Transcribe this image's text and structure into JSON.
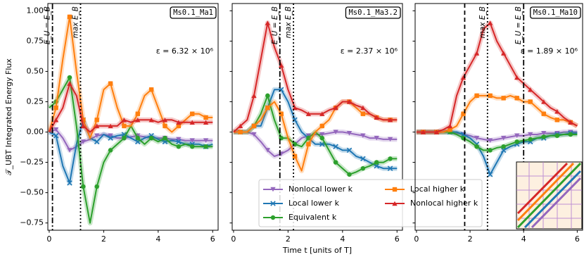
{
  "chart_data": [
    {
      "type": "line",
      "title": "Ms0.1_Ma1",
      "annotation": "ε = 6.32 × 10⁶",
      "y_label": "𝒯_UBT Integrated Energy Flux",
      "xlim": [
        -0.05,
        6.2
      ],
      "xticks": [
        0,
        2,
        4,
        6
      ],
      "ylim": [
        -0.81,
        1.06
      ],
      "yticks": [
        {
          "value": -0.75,
          "label": "−0.75"
        },
        {
          "value": -0.5,
          "label": "−0.50"
        },
        {
          "value": -0.25,
          "label": "−0.25"
        },
        {
          "value": 0,
          "label": "0.00"
        },
        {
          "value": 0.25,
          "label": "0.25"
        },
        {
          "value": 0.5,
          "label": "0.50"
        },
        {
          "value": 0.75,
          "label": "0.75"
        },
        {
          "value": 1,
          "label": "1.00"
        }
      ],
      "vlines": [
        {
          "x": 0.12,
          "style": "dashdot",
          "label": "E_U = E_B"
        },
        {
          "x": 1.15,
          "style": "dotted",
          "label": "max E_B"
        }
      ],
      "x": [
        0,
        0.25,
        0.5,
        0.75,
        1,
        1.25,
        1.5,
        1.75,
        2,
        2.25,
        2.5,
        2.75,
        3,
        3.25,
        3.5,
        3.75,
        4,
        4.25,
        4.5,
        4.75,
        5,
        5.25,
        5.5,
        5.75,
        6
      ],
      "series": [
        {
          "color": "#9467bd",
          "marker": "v",
          "values": [
            0,
            0.02,
            -0.05,
            -0.15,
            -0.12,
            -0.08,
            -0.06,
            -0.03,
            -0.02,
            -0.03,
            -0.05,
            -0.05,
            -0.04,
            -0.03,
            -0.04,
            -0.05,
            -0.05,
            -0.05,
            -0.06,
            -0.06,
            -0.07,
            -0.07,
            -0.07,
            -0.07,
            -0.07
          ]
        },
        {
          "color": "#1f77b4",
          "marker": "x",
          "values": [
            0,
            -0.03,
            -0.28,
            -0.42,
            -0.1,
            0.1,
            -0.05,
            -0.08,
            -0.02,
            -0.05,
            -0.03,
            -0.02,
            -0.05,
            -0.08,
            -0.05,
            -0.03,
            -0.06,
            -0.08,
            -0.07,
            -0.08,
            -0.1,
            -0.1,
            -0.1,
            -0.12,
            -0.1
          ]
        },
        {
          "color": "#2ca02c",
          "marker": "o",
          "values": [
            0.2,
            0.25,
            0.35,
            0.45,
            0.05,
            -0.45,
            -0.75,
            -0.45,
            -0.25,
            -0.15,
            -0.1,
            -0.05,
            0.05,
            -0.05,
            -0.1,
            -0.05,
            -0.08,
            -0.05,
            -0.1,
            -0.12,
            -0.1,
            -0.12,
            -0.12,
            -0.12,
            -0.12
          ]
        },
        {
          "color": "#ff7f0e",
          "marker": "s",
          "values": [
            0,
            0.2,
            0.6,
            0.95,
            0.5,
            0.1,
            -0.05,
            0.1,
            0.35,
            0.4,
            0.2,
            0.05,
            0.05,
            0.15,
            0.3,
            0.35,
            0.2,
            0.05,
            0,
            0.05,
            0.1,
            0.15,
            0.15,
            0.12,
            0.12
          ]
        },
        {
          "color": "#d62728",
          "marker": "^",
          "values": [
            0,
            0.1,
            0.2,
            0.4,
            0.3,
            0.05,
            0,
            0.05,
            0.05,
            0.05,
            0.05,
            0.1,
            0.08,
            0.1,
            0.1,
            0.1,
            0.08,
            0.1,
            0.1,
            0.08,
            0.08,
            0.08,
            0.08,
            0.08,
            0.08
          ]
        }
      ]
    },
    {
      "type": "line",
      "title": "Ms0.1_Ma3.2",
      "annotation": "ε = 2.37 × 10⁶",
      "x_label": "Time t [units of T]",
      "xlim": [
        -0.05,
        6.2
      ],
      "xticks": [
        0,
        2,
        4,
        6
      ],
      "vlines": [
        {
          "x": 1.7,
          "style": "dashdot",
          "label": "E_U = E_B"
        },
        {
          "x": 2.2,
          "style": "dotted",
          "label": "max E_B"
        }
      ],
      "x": [
        0,
        0.25,
        0.5,
        0.75,
        1,
        1.25,
        1.5,
        1.75,
        2,
        2.25,
        2.5,
        2.75,
        3,
        3.25,
        3.5,
        3.75,
        4,
        4.25,
        4.5,
        4.75,
        5,
        5.25,
        5.5,
        5.75,
        6
      ],
      "series": [
        {
          "name": "Nonlocal lower k",
          "color": "#9467bd",
          "marker": "v",
          "values": [
            0,
            0,
            0,
            -0.02,
            -0.08,
            -0.15,
            -0.2,
            -0.18,
            -0.15,
            -0.1,
            -0.05,
            -0.03,
            -0.02,
            -0.02,
            -0.01,
            0,
            0,
            -0.01,
            -0.02,
            -0.03,
            -0.05,
            -0.05,
            -0.06,
            -0.06,
            -0.06
          ]
        },
        {
          "name": "Local lower k",
          "color": "#1f77b4",
          "marker": "x",
          "values": [
            0,
            0,
            0,
            0.05,
            0.05,
            0.2,
            0.35,
            0.35,
            0.25,
            0.1,
            0,
            -0.05,
            -0.1,
            -0.1,
            -0.1,
            -0.12,
            -0.15,
            -0.15,
            -0.2,
            -0.22,
            -0.25,
            -0.28,
            -0.3,
            -0.3,
            -0.3
          ]
        },
        {
          "name": "Equivalent k",
          "color": "#2ca02c",
          "marker": "o",
          "values": [
            0,
            0,
            0,
            0.05,
            0.15,
            0.3,
            0.1,
            -0.05,
            -0.05,
            -0.1,
            -0.12,
            -0.05,
            0,
            -0.05,
            -0.15,
            -0.25,
            -0.3,
            -0.35,
            -0.33,
            -0.3,
            -0.28,
            -0.25,
            -0.25,
            -0.22,
            -0.22
          ]
        },
        {
          "name": "Local higher k",
          "color": "#ff7f0e",
          "marker": "s",
          "values": [
            0,
            0,
            0,
            0.05,
            0.1,
            0.2,
            0.25,
            0.15,
            -0.05,
            -0.2,
            -0.32,
            -0.1,
            0,
            0.05,
            0.1,
            0.2,
            0.25,
            0.25,
            0.2,
            0.15,
            0.15,
            0.12,
            0.1,
            0.1,
            0.1
          ]
        },
        {
          "name": "Nonlocal higher k",
          "color": "#d62728",
          "marker": "^",
          "values": [
            0,
            0.05,
            0.1,
            0.3,
            0.6,
            0.9,
            0.7,
            0.55,
            0.35,
            0.2,
            0.18,
            0.15,
            0.15,
            0.15,
            0.18,
            0.2,
            0.25,
            0.25,
            0.22,
            0.2,
            0.15,
            0.12,
            0.1,
            0.1,
            0.1
          ]
        }
      ]
    },
    {
      "type": "line",
      "title": "Ms0.1_Ma10",
      "annotation": "ε = 1.89 × 10⁶",
      "xlim": [
        -0.05,
        6.2
      ],
      "xticks": [
        0,
        2,
        4,
        6
      ],
      "vlines": [
        {
          "x": 1.8,
          "style": "dashed"
        },
        {
          "x": 2.65,
          "style": "dotted",
          "label": "max E_B"
        },
        {
          "x": 4.0,
          "style": "dashdot",
          "label": "E_U = E_B"
        }
      ],
      "x": [
        0,
        0.25,
        0.5,
        0.75,
        1,
        1.25,
        1.5,
        1.75,
        2,
        2.25,
        2.5,
        2.75,
        3,
        3.25,
        3.5,
        3.75,
        4,
        4.25,
        4.5,
        4.75,
        5,
        5.25,
        5.5,
        5.75,
        6
      ],
      "series": [
        {
          "color": "#9467bd",
          "marker": "v",
          "values": [
            0,
            0,
            0,
            0,
            0,
            0,
            -0.01,
            -0.02,
            -0.03,
            -0.05,
            -0.06,
            -0.07,
            -0.06,
            -0.05,
            -0.04,
            -0.03,
            -0.03,
            -0.02,
            -0.02,
            -0.01,
            -0.01,
            -0.01,
            0,
            0,
            0
          ]
        },
        {
          "color": "#1f77b4",
          "marker": "x",
          "values": [
            0,
            0,
            0,
            0,
            0,
            0,
            0,
            -0.02,
            -0.05,
            -0.1,
            -0.2,
            -0.35,
            -0.25,
            -0.15,
            -0.12,
            -0.1,
            -0.08,
            -0.08,
            -0.05,
            -0.05,
            -0.03,
            -0.02,
            -0.02,
            -0.01,
            -0.01
          ]
        },
        {
          "color": "#2ca02c",
          "marker": "o",
          "values": [
            0,
            0,
            0,
            0,
            0,
            0,
            -0.02,
            -0.05,
            -0.08,
            -0.12,
            -0.15,
            -0.15,
            -0.13,
            -0.12,
            -0.1,
            -0.08,
            -0.07,
            -0.06,
            -0.05,
            -0.04,
            -0.03,
            -0.03,
            -0.02,
            -0.02,
            -0.02
          ]
        },
        {
          "color": "#ff7f0e",
          "marker": "s",
          "values": [
            0,
            0,
            0,
            0,
            0,
            0.02,
            0.05,
            0.15,
            0.25,
            0.3,
            0.3,
            0.3,
            0.28,
            0.28,
            0.3,
            0.28,
            0.25,
            0.25,
            0.2,
            0.15,
            0.12,
            0.1,
            0.1,
            0.08,
            0.05
          ]
        },
        {
          "color": "#d62728",
          "marker": "^",
          "values": [
            0,
            0,
            0,
            0,
            0.02,
            0.05,
            0.3,
            0.45,
            0.55,
            0.65,
            0.85,
            0.9,
            0.75,
            0.65,
            0.55,
            0.45,
            0.4,
            0.35,
            0.3,
            0.25,
            0.2,
            0.17,
            0.12,
            0.08,
            0.05
          ]
        }
      ]
    }
  ]
}
